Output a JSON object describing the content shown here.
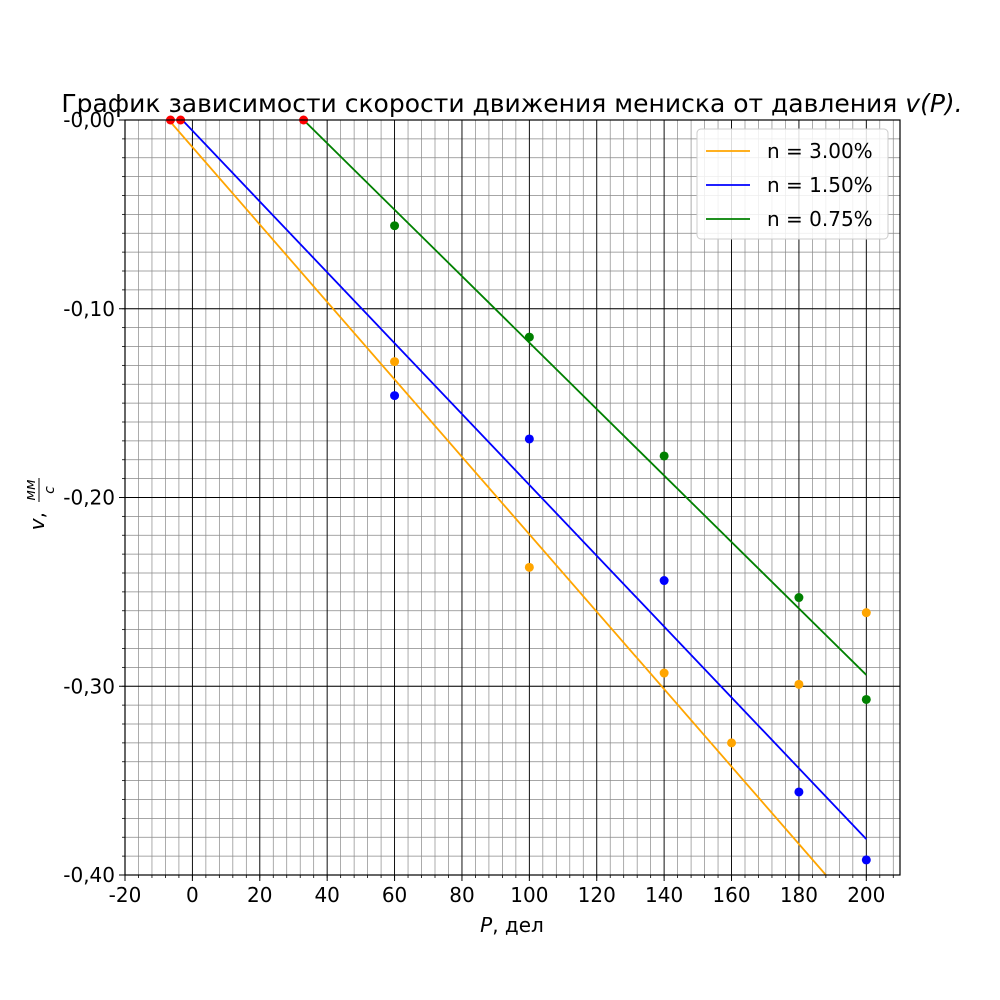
{
  "chart_data": {
    "type": "scatter",
    "title_text": "График зависимости скорости движения мениска от давления ",
    "title_math": "v(P).",
    "xlabel_math": "P",
    "xlabel_text": ", дел",
    "ylabel_math": "v",
    "ylabel_unit_num": "мм",
    "ylabel_unit_den": "с",
    "xlim": [
      -20,
      210
    ],
    "ylim": [
      -0.4,
      0.0
    ],
    "x_ticks": [
      -20,
      0,
      20,
      40,
      60,
      80,
      100,
      120,
      140,
      160,
      180,
      200
    ],
    "x_tick_labels": [
      "-20",
      "0",
      "20",
      "40",
      "60",
      "80",
      "100",
      "120",
      "140",
      "160",
      "180",
      "200"
    ],
    "y_ticks": [
      0.0,
      -0.1,
      -0.2,
      -0.3,
      -0.4
    ],
    "y_tick_labels": [
      "-0,00",
      "-0,10",
      "-0,20",
      "-0,30",
      "-0,40"
    ],
    "grid": "major and minor",
    "legend_position": "top-right",
    "series": [
      {
        "name": "n = 3.00%",
        "legend_math": "n = 3.00%",
        "color": "#ffa500",
        "points": [
          [
            60,
            -0.128
          ],
          [
            100,
            -0.237
          ],
          [
            140,
            -0.293
          ],
          [
            160,
            -0.33
          ],
          [
            180,
            -0.299
          ],
          [
            200,
            -0.261
          ]
        ],
        "fit_line": [
          [
            -7,
            0.0
          ],
          [
            188,
            -0.4
          ]
        ]
      },
      {
        "name": "n = 1.50%",
        "legend_math": "n = 1.50%",
        "color": "#0000ff",
        "points": [
          [
            60,
            -0.146
          ],
          [
            100,
            -0.169
          ],
          [
            140,
            -0.244
          ],
          [
            180,
            -0.356
          ],
          [
            200,
            -0.392
          ]
        ],
        "fit_line": [
          [
            -3,
            0.0
          ],
          [
            200,
            -0.381
          ]
        ]
      },
      {
        "name": "n = 0.75%",
        "legend_math": "n = 0.75%",
        "color": "#008000",
        "points": [
          [
            60,
            -0.056
          ],
          [
            100,
            -0.115
          ],
          [
            140,
            -0.178
          ],
          [
            180,
            -0.253
          ],
          [
            200,
            -0.307
          ]
        ],
        "fit_line": [
          [
            33,
            0.0
          ],
          [
            200,
            -0.294
          ]
        ]
      }
    ],
    "intercept_points": {
      "color": "#ff0000",
      "points": [
        [
          -6.5,
          0.0
        ],
        [
          -3.5,
          0.0
        ],
        [
          33,
          0.0
        ]
      ]
    }
  }
}
